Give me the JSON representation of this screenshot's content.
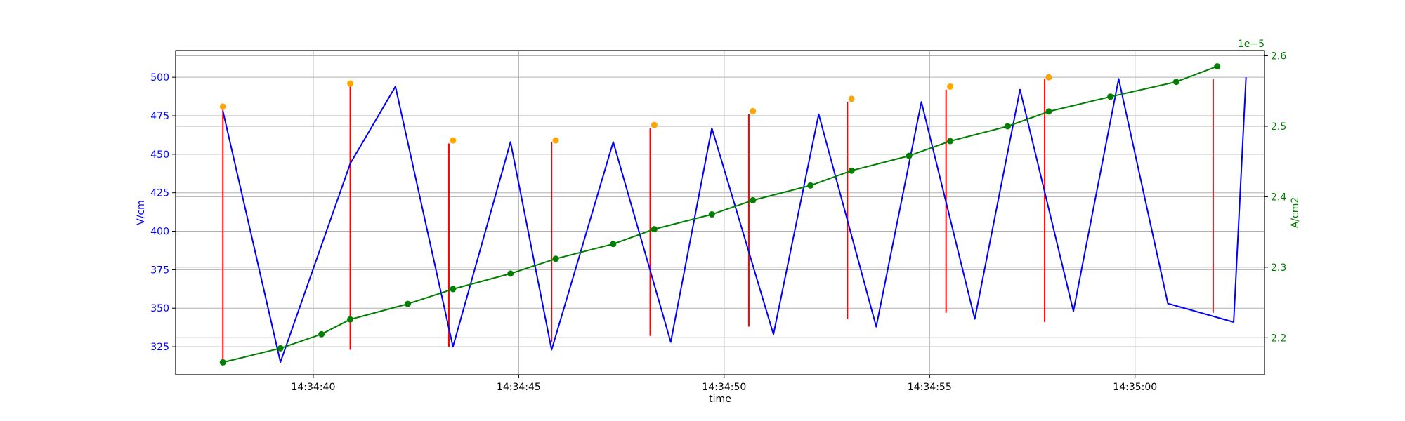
{
  "chart_data": {
    "type": "line",
    "title": "",
    "xlabel": "time",
    "ylabel_left": "V/cm",
    "ylabel_right": "A/cm2",
    "right_axis_offset_text": "1e−5",
    "xlim": [
      -1.15,
      25.35
    ],
    "ylim_left": [
      306.8,
      517.4
    ],
    "ylim_right": [
      2.1475,
      2.6075
    ],
    "grid": true,
    "x_ticks": [
      {
        "x": 2.2,
        "label": "14:34:40"
      },
      {
        "x": 7.2,
        "label": "14:34:45"
      },
      {
        "x": 12.2,
        "label": "14:34:50"
      },
      {
        "x": 17.2,
        "label": "14:34:55"
      },
      {
        "x": 22.2,
        "label": "14:35:00"
      }
    ],
    "y_ticks_left": [
      325,
      350,
      375,
      400,
      425,
      450,
      475,
      500
    ],
    "y_ticks_right": [
      2.2,
      2.3,
      2.4,
      2.5,
      2.6
    ],
    "colors": {
      "voltage_line": "#0000ff",
      "peak_markers": "#ffa500",
      "vlines": "#ff0000",
      "current_line": "#008000",
      "left_axis_text": "#0000ff",
      "right_axis_text": "#008000",
      "grid": "#b0b0b0"
    },
    "series": [
      {
        "axis": "left",
        "style": "line",
        "color": "#0000ff",
        "points": [
          [
            0.0,
            478
          ],
          [
            1.4,
            315
          ],
          [
            3.1,
            444
          ],
          [
            4.2,
            494
          ],
          [
            5.6,
            325
          ],
          [
            7.0,
            458
          ],
          [
            8.0,
            323
          ],
          [
            9.5,
            458
          ],
          [
            10.9,
            328
          ],
          [
            11.9,
            467
          ],
          [
            13.4,
            333
          ],
          [
            14.5,
            476
          ],
          [
            15.9,
            338
          ],
          [
            17.0,
            484
          ],
          [
            18.3,
            343
          ],
          [
            19.4,
            492
          ],
          [
            20.7,
            348
          ],
          [
            21.8,
            499
          ],
          [
            23.0,
            353
          ],
          [
            24.6,
            341
          ],
          [
            24.9,
            500
          ]
        ]
      },
      {
        "axis": "left",
        "style": "markers",
        "color": "#ffa500",
        "points": [
          [
            0.0,
            481
          ],
          [
            3.1,
            496
          ],
          [
            5.6,
            459
          ],
          [
            8.1,
            459
          ],
          [
            10.5,
            469
          ],
          [
            12.9,
            478
          ],
          [
            15.3,
            486
          ],
          [
            17.7,
            494
          ],
          [
            20.1,
            500
          ]
        ]
      },
      {
        "axis": "left",
        "style": "vlines",
        "color": "#ff0000",
        "segments": [
          [
            0.0,
            317,
            479
          ],
          [
            3.1,
            323,
            494
          ],
          [
            5.5,
            325,
            457
          ],
          [
            8.0,
            328,
            458
          ],
          [
            10.4,
            332,
            467
          ],
          [
            12.8,
            338,
            476
          ],
          [
            15.2,
            343,
            484
          ],
          [
            17.6,
            347,
            492
          ],
          [
            20.0,
            341,
            499
          ],
          [
            24.1,
            347,
            499
          ]
        ]
      },
      {
        "axis": "right",
        "style": "line-markers",
        "color": "#008000",
        "points": [
          [
            0.0,
            2.165
          ],
          [
            1.4,
            2.185
          ],
          [
            2.4,
            2.205
          ],
          [
            3.1,
            2.226
          ],
          [
            4.5,
            2.248
          ],
          [
            5.6,
            2.269
          ],
          [
            7.0,
            2.291
          ],
          [
            8.1,
            2.312
          ],
          [
            9.5,
            2.333
          ],
          [
            10.5,
            2.354
          ],
          [
            11.9,
            2.375
          ],
          [
            12.9,
            2.395
          ],
          [
            14.3,
            2.416
          ],
          [
            15.3,
            2.437
          ],
          [
            16.7,
            2.458
          ],
          [
            17.7,
            2.479
          ],
          [
            19.1,
            2.5
          ],
          [
            20.1,
            2.521
          ],
          [
            21.6,
            2.542
          ],
          [
            23.2,
            2.563
          ],
          [
            24.2,
            2.585
          ]
        ]
      }
    ]
  }
}
